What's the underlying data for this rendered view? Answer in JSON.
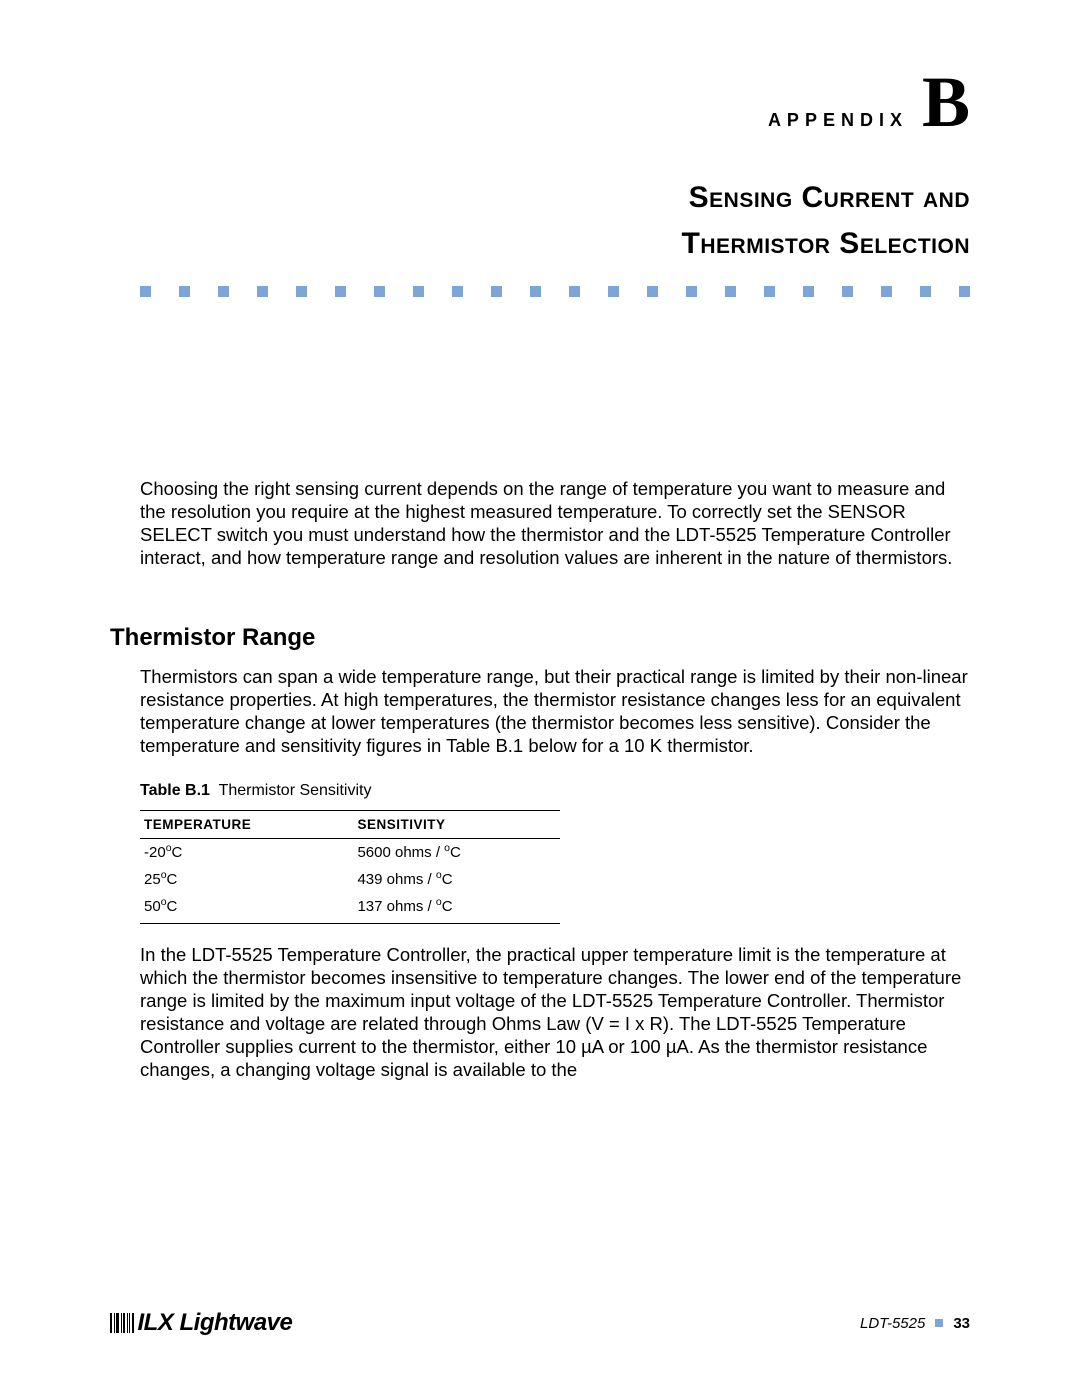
{
  "colors": {
    "dot": "#7da5d8",
    "text": "#000000",
    "background": "#ffffff"
  },
  "header": {
    "appendix_label": "APPENDIX",
    "appendix_letter": "B",
    "title_line1": "Sensing Current and",
    "title_line2": "Thermistor Selection",
    "dot_count": 22
  },
  "intro_paragraph": "Choosing the right sensing current depends on the range of temperature you want to measure and the resolution you require at the highest measured temperature. To correctly set the SENSOR SELECT switch you must understand how the thermistor and the LDT-5525 Temperature Controller interact, and how temperature range and resolution values are inherent in the nature of thermistors.",
  "section": {
    "heading": "Thermistor Range",
    "body1": "Thermistors can span a wide temperature range, but their practical range is limited by their non-linear resistance properties. At high temperatures, the thermistor resistance changes less for an equivalent temperature change at lower temperatures (the thermistor becomes less sensitive). Consider the temperature and sensitivity figures in Table B.1 below for a 10 K thermistor.",
    "body2": "In the LDT-5525 Temperature Controller, the practical upper temperature limit is the temperature at which the thermistor becomes insensitive to temperature changes. The lower end of the temperature range is limited by the maximum input voltage of the LDT-5525 Temperature Controller. Thermistor resistance and voltage are related through Ohms Law (V = I x R). The LDT-5525 Temperature Controller supplies current to the thermistor, either 10 µA or 100 µA. As the thermistor resistance changes, a changing voltage signal is available to the"
  },
  "table": {
    "caption_label": "Table B.1",
    "caption_text": "Thermistor Sensitivity",
    "columns": [
      "TEMPERATURE",
      "SENSITIVITY"
    ],
    "rows": [
      {
        "temp_val": "-20",
        "temp_unit": "C",
        "sens_val": "5600 ohms / ",
        "sens_unit": "C"
      },
      {
        "temp_val": "25",
        "temp_unit": "C",
        "sens_val": "439 ohms / ",
        "sens_unit": "C"
      },
      {
        "temp_val": "50",
        "temp_unit": "C",
        "sens_val": "137 ohms / ",
        "sens_unit": "C"
      }
    ]
  },
  "footer": {
    "logo_text": "ILX Lightwave",
    "doc_id": "LDT-5525",
    "page_number": "33"
  }
}
